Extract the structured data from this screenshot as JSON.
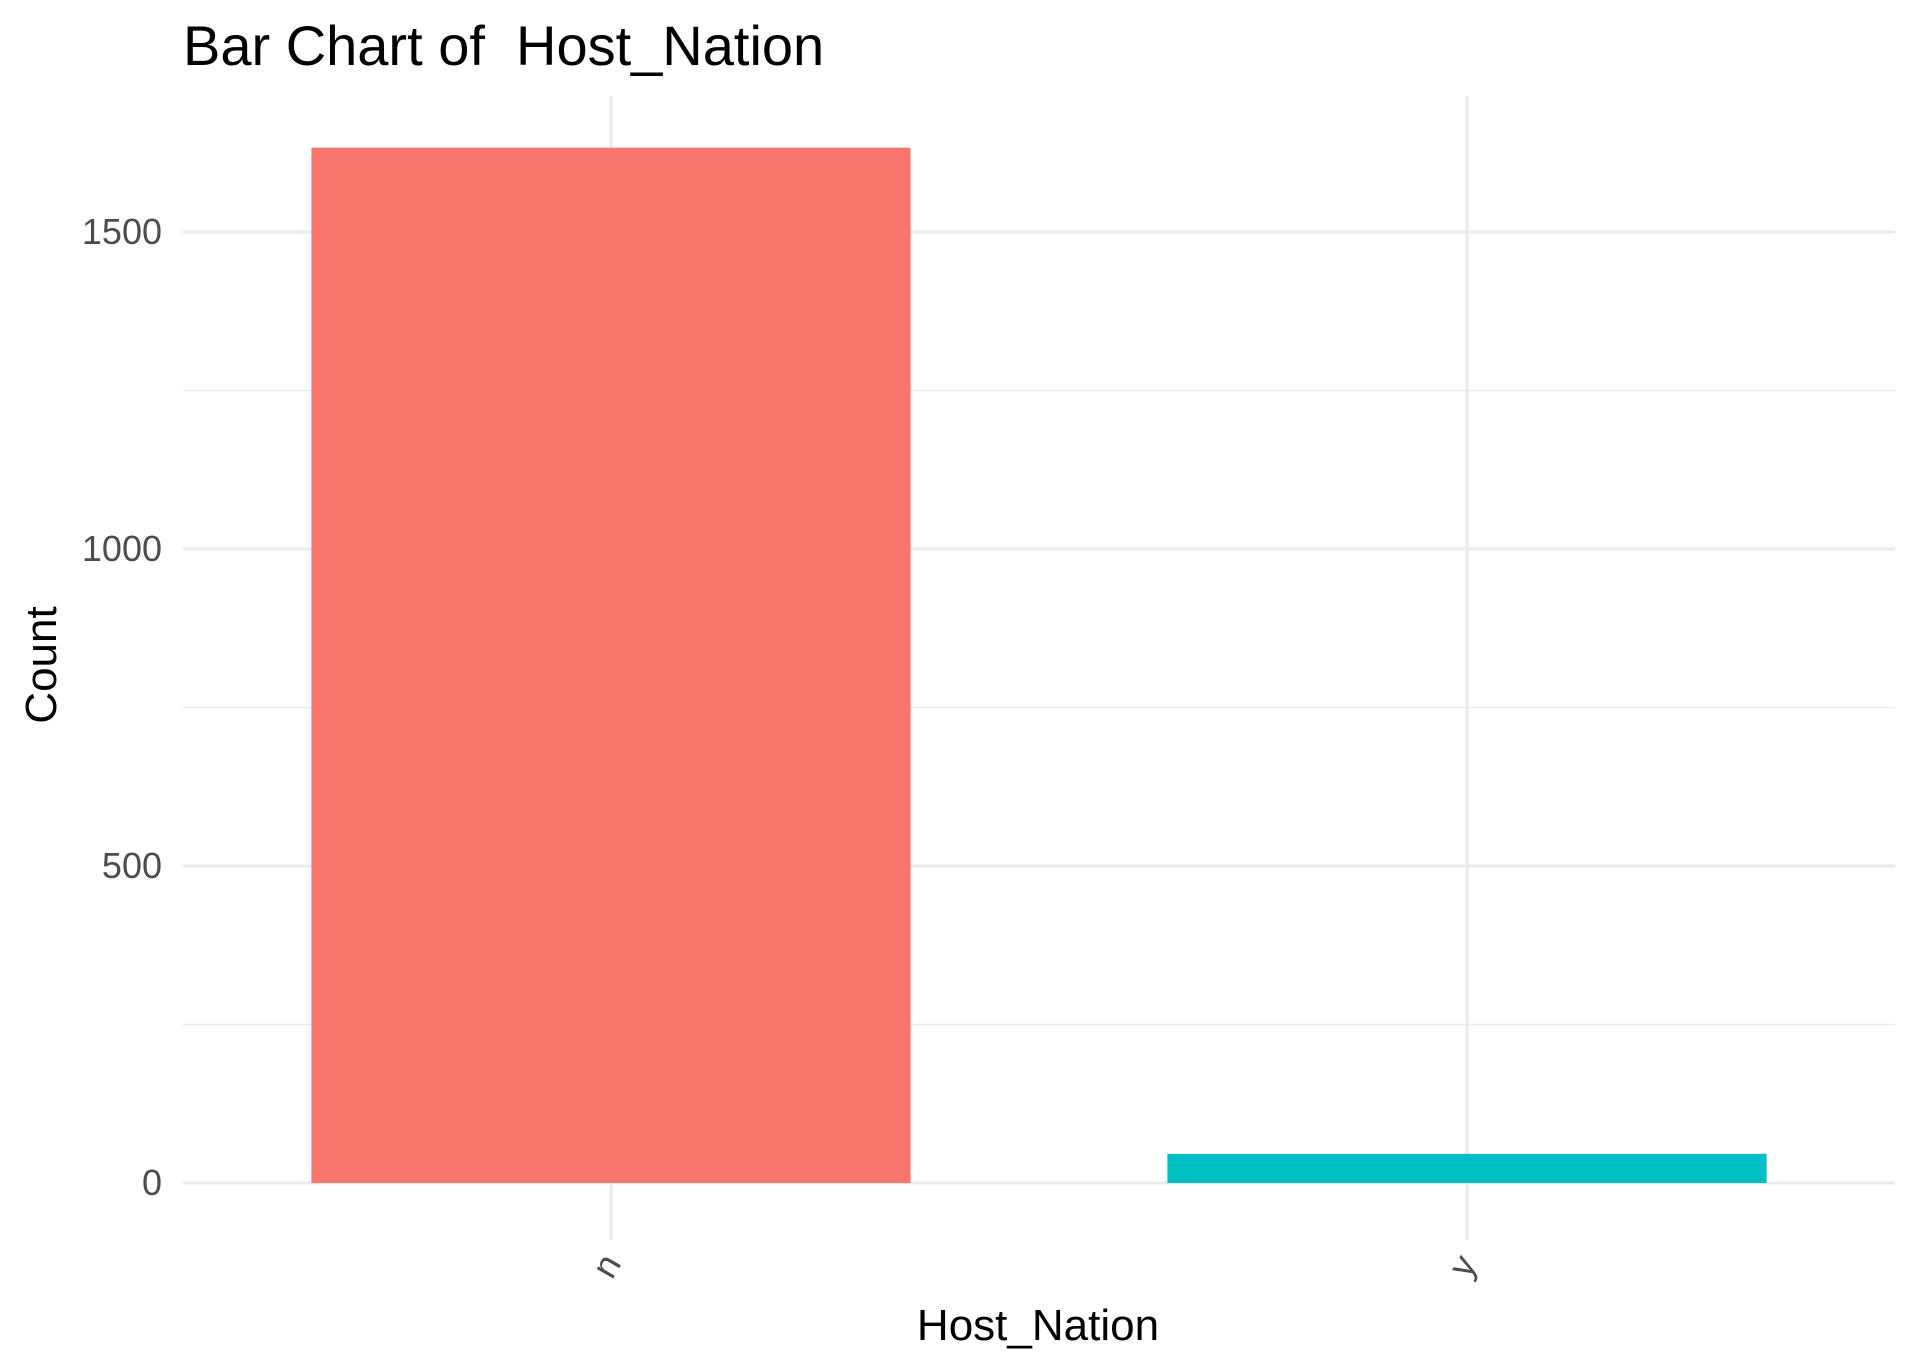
{
  "chart_data": {
    "type": "bar",
    "title": "Bar Chart of  Host_Nation",
    "xlabel": "Host_Nation",
    "ylabel": "Count",
    "categories": [
      "n",
      "y"
    ],
    "values": [
      1633,
      46
    ],
    "colors": [
      "#F8766D",
      "#00BFC4"
    ],
    "ylim": [
      0,
      1720
    ],
    "yticks": [
      0,
      500,
      1000,
      1500
    ],
    "yticks_labels": [
      "0",
      "500",
      "1000",
      "1500"
    ],
    "grid": true,
    "legend": "none"
  }
}
